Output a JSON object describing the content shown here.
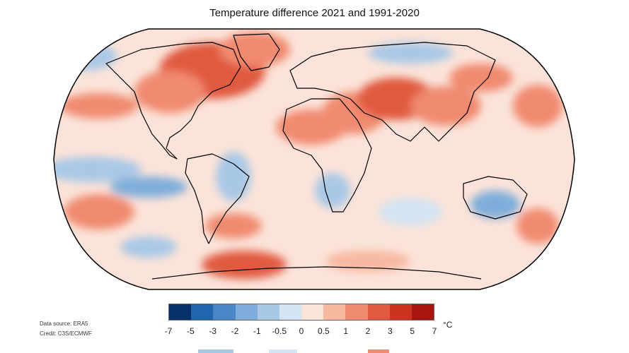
{
  "title": "Temperature difference 2021 and 1991-2020",
  "source": {
    "data_source": "Data source: ERA5",
    "credit": "Credit: C3S/ECMWF"
  },
  "legend": {
    "unit": "°C",
    "ticks": [
      "-7",
      "-5",
      "-3",
      "-2",
      "-1",
      "-0.5",
      "0",
      "0.5",
      "1",
      "2",
      "3",
      "5",
      "7"
    ],
    "colors": [
      "#08306b",
      "#2166ac",
      "#4a86c5",
      "#7fadda",
      "#a9c8e6",
      "#d4e4f3",
      "#fbe3d9",
      "#f7b8a0",
      "#f08a70",
      "#e05a40",
      "#cc3421",
      "#a7170f"
    ]
  },
  "map": {
    "projection": "Robinson",
    "ocean_base_color": "#fbe3d9",
    "land_base_color": "#fbe3d9",
    "coastline_color": "#000000"
  }
}
